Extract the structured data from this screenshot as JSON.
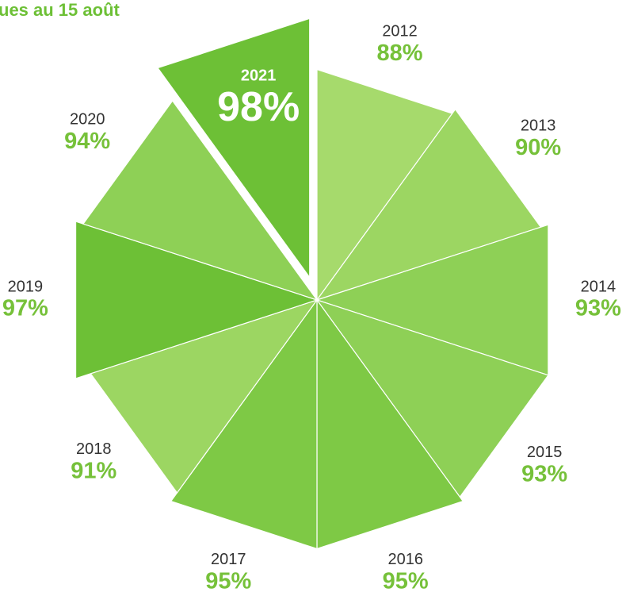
{
  "chart_data": {
    "type": "polar-area",
    "title": "ues au 15 août",
    "categories": [
      "2012",
      "2013",
      "2014",
      "2015",
      "2016",
      "2017",
      "2018",
      "2019",
      "2020",
      "2021"
    ],
    "values": [
      88,
      90,
      93,
      93,
      95,
      95,
      91,
      97,
      94,
      98
    ],
    "value_labels": [
      "88%",
      "90%",
      "93%",
      "93%",
      "95%",
      "95%",
      "91%",
      "97%",
      "94%",
      "98%"
    ],
    "colors": [
      "#a6da6c",
      "#9cd662",
      "#8ed056",
      "#8ed056",
      "#7ec945",
      "#7ec945",
      "#9cd662",
      "#6dc036",
      "#8ed056",
      "#6dc036"
    ],
    "explode": [
      false,
      false,
      false,
      false,
      false,
      false,
      false,
      false,
      false,
      true
    ]
  }
}
